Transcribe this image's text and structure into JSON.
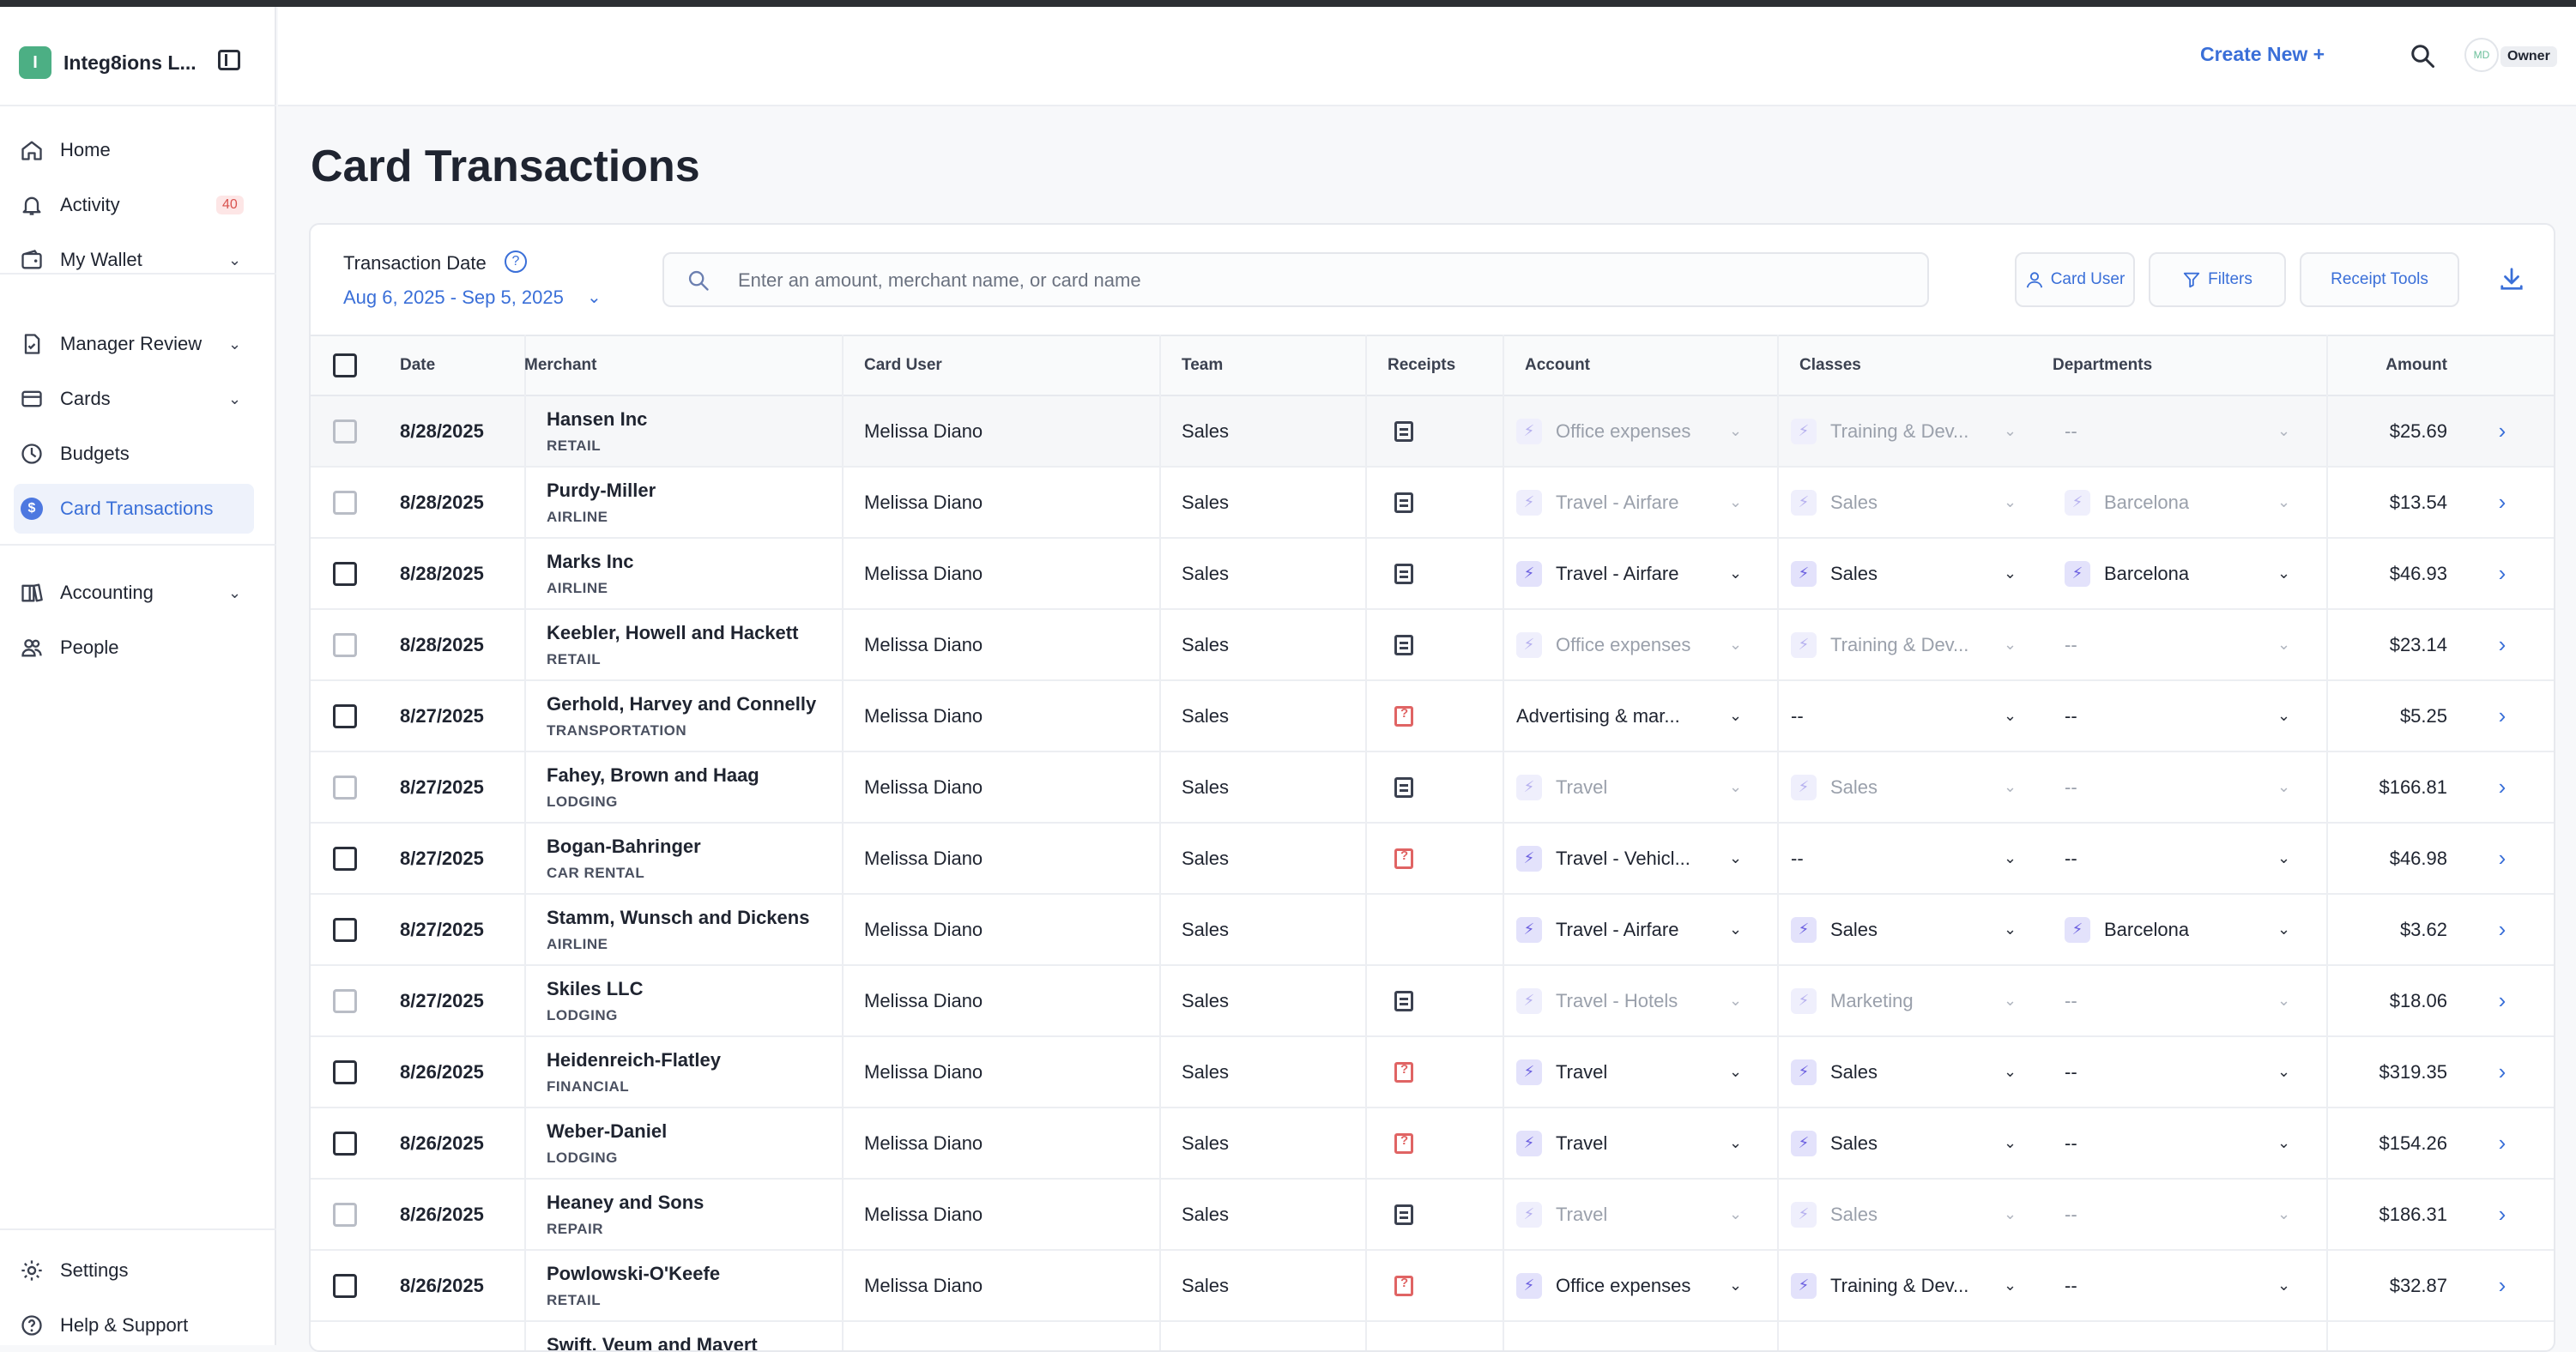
{
  "sidebar": {
    "org_initial": "I",
    "org_name": "Integ8ions L...",
    "nav": [
      {
        "label": "Home",
        "icon": "home-icon"
      },
      {
        "label": "Activity",
        "icon": "bell-icon",
        "badge": "40"
      },
      {
        "label": "My Wallet",
        "icon": "wallet-icon"
      },
      {
        "label": "Manager Review",
        "icon": "review-icon"
      },
      {
        "label": "Cards",
        "icon": "card-icon"
      },
      {
        "label": "Budgets",
        "icon": "budget-icon"
      },
      {
        "label": "Card Transactions",
        "icon": "dollar-icon",
        "active": true
      },
      {
        "label": "Accounting",
        "icon": "book-icon"
      },
      {
        "label": "People",
        "icon": "people-icon"
      }
    ],
    "footer": [
      {
        "label": "Settings",
        "icon": "gear-icon"
      },
      {
        "label": "Help & Support",
        "icon": "help-icon"
      }
    ]
  },
  "header": {
    "create_new": "Create New +",
    "avatar_initials": "MD",
    "role": "Owner"
  },
  "page": {
    "title": "Card Transactions",
    "filter_label": "Transaction Date",
    "date_range": "Aug 6, 2025 - Sep 5, 2025",
    "search_placeholder": "Enter an amount, merchant name, or card name",
    "tools": {
      "card_user": "Card User",
      "filters": "Filters",
      "receipt_tools": "Receipt Tools"
    }
  },
  "table": {
    "headers": [
      "Date",
      "Merchant",
      "Card User",
      "Team",
      "Receipts",
      "Account",
      "Classes",
      "Departments",
      "Amount"
    ],
    "rows": [
      {
        "date": "8/28/2025",
        "merchant": "Hansen Inc",
        "category": "RETAIL",
        "user": "Melissa Diano",
        "team": "Sales",
        "receipt": "present",
        "account": "Office expenses",
        "classes": "Training & Dev...",
        "dept": "--",
        "amount": "$25.69",
        "dim": true,
        "cb_dim": true,
        "hl": true
      },
      {
        "date": "8/28/2025",
        "merchant": "Purdy-Miller",
        "category": "AIRLINE",
        "user": "Melissa Diano",
        "team": "Sales",
        "receipt": "present",
        "account": "Travel - Airfare",
        "classes": "Sales",
        "dept": "Barcelona",
        "amount": "$13.54",
        "dim": true,
        "cb_dim": true,
        "dept_bolt": true
      },
      {
        "date": "8/28/2025",
        "merchant": "Marks Inc",
        "category": "AIRLINE",
        "user": "Melissa Diano",
        "team": "Sales",
        "receipt": "present",
        "account": "Travel - Airfare",
        "classes": "Sales",
        "dept": "Barcelona",
        "amount": "$46.93",
        "dim": false,
        "cb_dim": false,
        "dept_bolt": true
      },
      {
        "date": "8/28/2025",
        "merchant": "Keebler, Howell and Hackett",
        "category": "RETAIL",
        "user": "Melissa Diano",
        "team": "Sales",
        "receipt": "present",
        "account": "Office expenses",
        "classes": "Training & Dev...",
        "dept": "--",
        "amount": "$23.14",
        "dim": true,
        "cb_dim": true
      },
      {
        "date": "8/27/2025",
        "merchant": "Gerhold, Harvey and Connelly",
        "category": "TRANSPORTATION",
        "user": "Melissa Diano",
        "team": "Sales",
        "receipt": "missing",
        "account": "Advertising & mar...",
        "classes": "--",
        "dept": "--",
        "amount": "$5.25",
        "dim": false,
        "cb_dim": false,
        "no_bolt": true
      },
      {
        "date": "8/27/2025",
        "merchant": "Fahey, Brown and Haag",
        "category": "LODGING",
        "user": "Melissa Diano",
        "team": "Sales",
        "receipt": "present",
        "account": "Travel",
        "classes": "Sales",
        "dept": "--",
        "amount": "$166.81",
        "dim": true,
        "cb_dim": true
      },
      {
        "date": "8/27/2025",
        "merchant": "Bogan-Bahringer",
        "category": "CAR RENTAL",
        "user": "Melissa Diano",
        "team": "Sales",
        "receipt": "missing",
        "account": "Travel - Vehicl...",
        "classes": "--",
        "dept": "--",
        "amount": "$46.98",
        "dim": false,
        "cb_dim": false,
        "classes_nobolt": true
      },
      {
        "date": "8/27/2025",
        "merchant": "Stamm, Wunsch and Dickens",
        "category": "AIRLINE",
        "user": "Melissa Diano",
        "team": "Sales",
        "receipt": "none",
        "account": "Travel - Airfare",
        "classes": "Sales",
        "dept": "Barcelona",
        "amount": "$3.62",
        "dim": false,
        "cb_dim": false,
        "dept_bolt": true
      },
      {
        "date": "8/27/2025",
        "merchant": "Skiles LLC",
        "category": "LODGING",
        "user": "Melissa Diano",
        "team": "Sales",
        "receipt": "present",
        "account": "Travel - Hotels",
        "classes": "Marketing",
        "dept": "--",
        "amount": "$18.06",
        "dim": true,
        "cb_dim": true
      },
      {
        "date": "8/26/2025",
        "merchant": "Heidenreich-Flatley",
        "category": "FINANCIAL",
        "user": "Melissa Diano",
        "team": "Sales",
        "receipt": "missing",
        "account": "Travel",
        "classes": "Sales",
        "dept": "--",
        "amount": "$319.35",
        "dim": false,
        "cb_dim": false
      },
      {
        "date": "8/26/2025",
        "merchant": "Weber-Daniel",
        "category": "LODGING",
        "user": "Melissa Diano",
        "team": "Sales",
        "receipt": "missing",
        "account": "Travel",
        "classes": "Sales",
        "dept": "--",
        "amount": "$154.26",
        "dim": false,
        "cb_dim": false
      },
      {
        "date": "8/26/2025",
        "merchant": "Heaney and Sons",
        "category": "REPAIR",
        "user": "Melissa Diano",
        "team": "Sales",
        "receipt": "present",
        "account": "Travel",
        "classes": "Sales",
        "dept": "--",
        "amount": "$186.31",
        "dim": true,
        "cb_dim": true
      },
      {
        "date": "8/26/2025",
        "merchant": "Powlowski-O'Keefe",
        "category": "RETAIL",
        "user": "Melissa Diano",
        "team": "Sales",
        "receipt": "missing",
        "account": "Office expenses",
        "classes": "Training & Dev...",
        "dept": "--",
        "amount": "$32.87",
        "dim": false,
        "cb_dim": false
      },
      {
        "date": "",
        "merchant": "Swift, Veum and Mayert",
        "category": "",
        "user": "",
        "team": "",
        "receipt": "none",
        "account": "",
        "classes": "",
        "dept": "",
        "amount": "",
        "dim": false,
        "cb_dim": false,
        "partial": true
      }
    ]
  }
}
